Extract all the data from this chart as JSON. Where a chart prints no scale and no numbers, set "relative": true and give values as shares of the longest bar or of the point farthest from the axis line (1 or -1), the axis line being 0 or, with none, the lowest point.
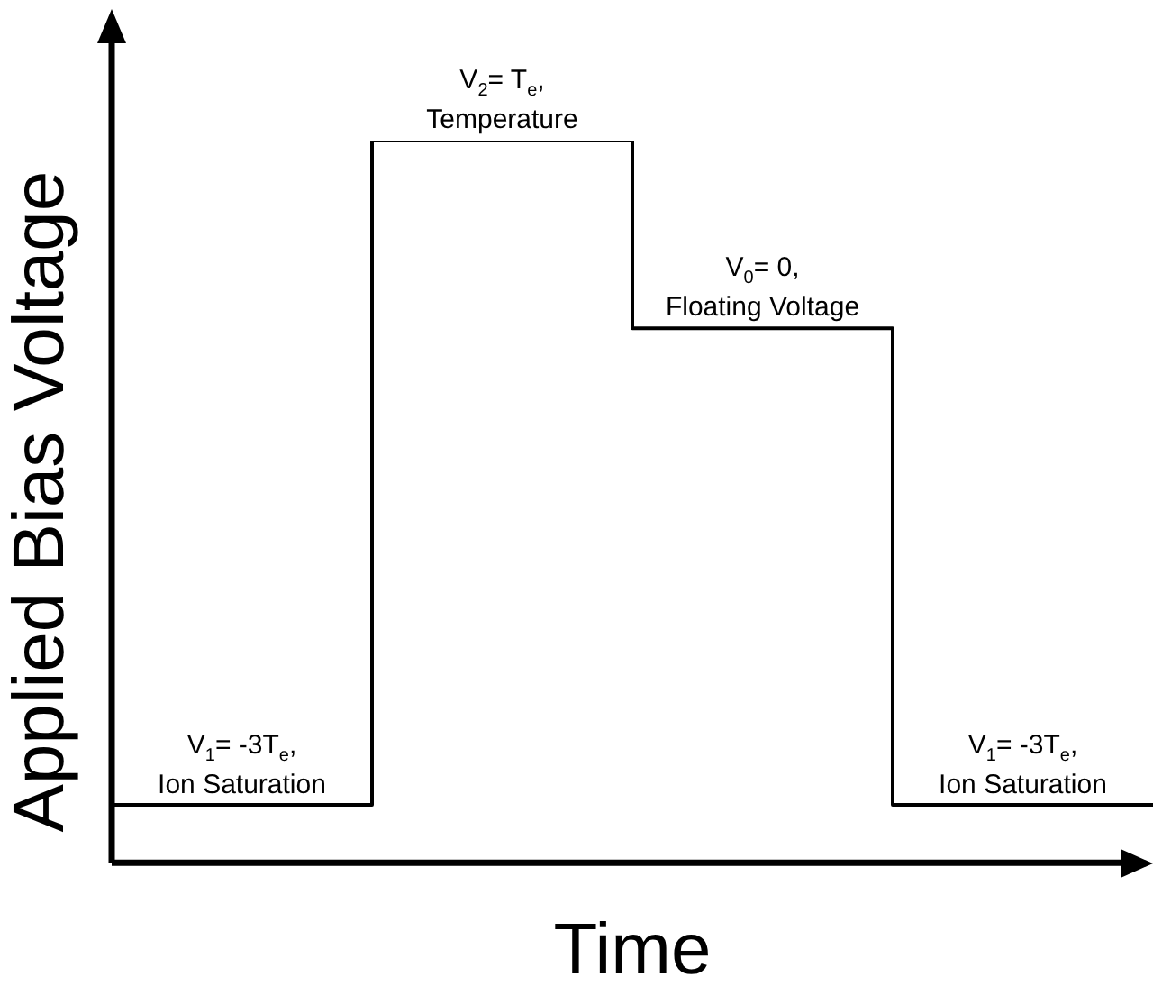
{
  "chart_data": {
    "type": "step",
    "xlabel": "Time",
    "ylabel": "Applied Bias Voltage",
    "relative": true,
    "categories": [
      null,
      null,
      null,
      null,
      null
    ],
    "values": [
      0.08,
      1,
      0.74,
      0.08,
      0.08
    ],
    "color": "#000000",
    "grid": false,
    "legend": false,
    "marker": "none",
    "line_style": "solid",
    "annotations": [
      "V$_{1}$= -3T$_{e}$,\nIon Saturation",
      "V$_{2}$= T$_{e}$,\nTemperature",
      "V$_{0}$= 0,\nFloating Voltage",
      "V$_{1}$= -3T$_{e}$,\nIon Saturation"
    ]
  }
}
